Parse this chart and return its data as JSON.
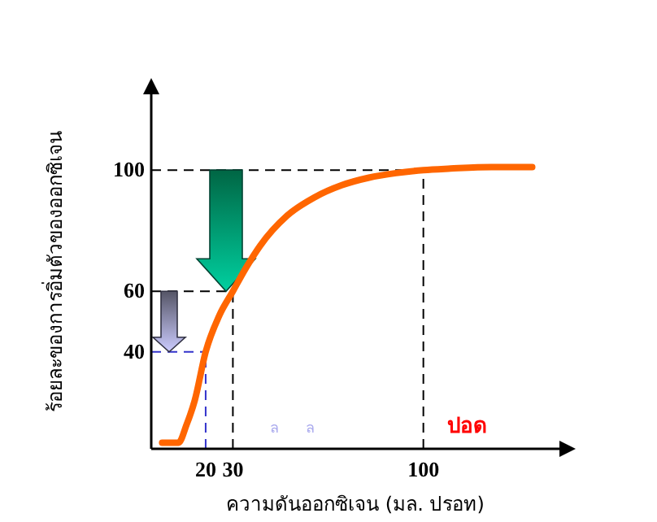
{
  "chart_data": {
    "type": "line",
    "xlabel": "ความดันออกซิเจน (มล. ปรอท)",
    "ylabel": "ร้อยละของการอิ่มตัวของออกซิเจน",
    "xlim": [
      0,
      150
    ],
    "ylim": [
      8,
      125
    ],
    "xticks": [
      20,
      30,
      100
    ],
    "yticks": [
      40,
      60,
      100
    ],
    "grid": false,
    "line_style": "solid",
    "series": [
      {
        "color": "#ff6600",
        "x": [
          4,
          10,
          13,
          16,
          20,
          25,
          30,
          35,
          40,
          50,
          60,
          70,
          80,
          90,
          100,
          110,
          125,
          140
        ],
        "values": [
          10,
          10,
          16,
          24,
          40,
          52,
          60,
          68,
          75,
          85,
          91,
          95,
          97.5,
          99,
          100,
          100.5,
          101,
          101
        ]
      }
    ],
    "ref_lines": [
      {
        "axis": "y",
        "value": 100,
        "color": "#000000",
        "line_style": "dashed"
      },
      {
        "axis": "x",
        "value": 100,
        "color": "#000000",
        "line_style": "dashed"
      },
      {
        "axis": "y",
        "value": 60,
        "color": "#000000",
        "line_style": "dashed"
      },
      {
        "axis": "x",
        "value": 30,
        "color": "#000000",
        "line_style": "dashed"
      },
      {
        "axis": "y",
        "value": 40,
        "color": "#3333cc",
        "line_style": "dashed"
      },
      {
        "axis": "x",
        "value": 20,
        "color": "#3333cc",
        "line_style": "dashed"
      }
    ],
    "annotations": [
      "ปอด",
      "ล",
      "ล"
    ]
  }
}
